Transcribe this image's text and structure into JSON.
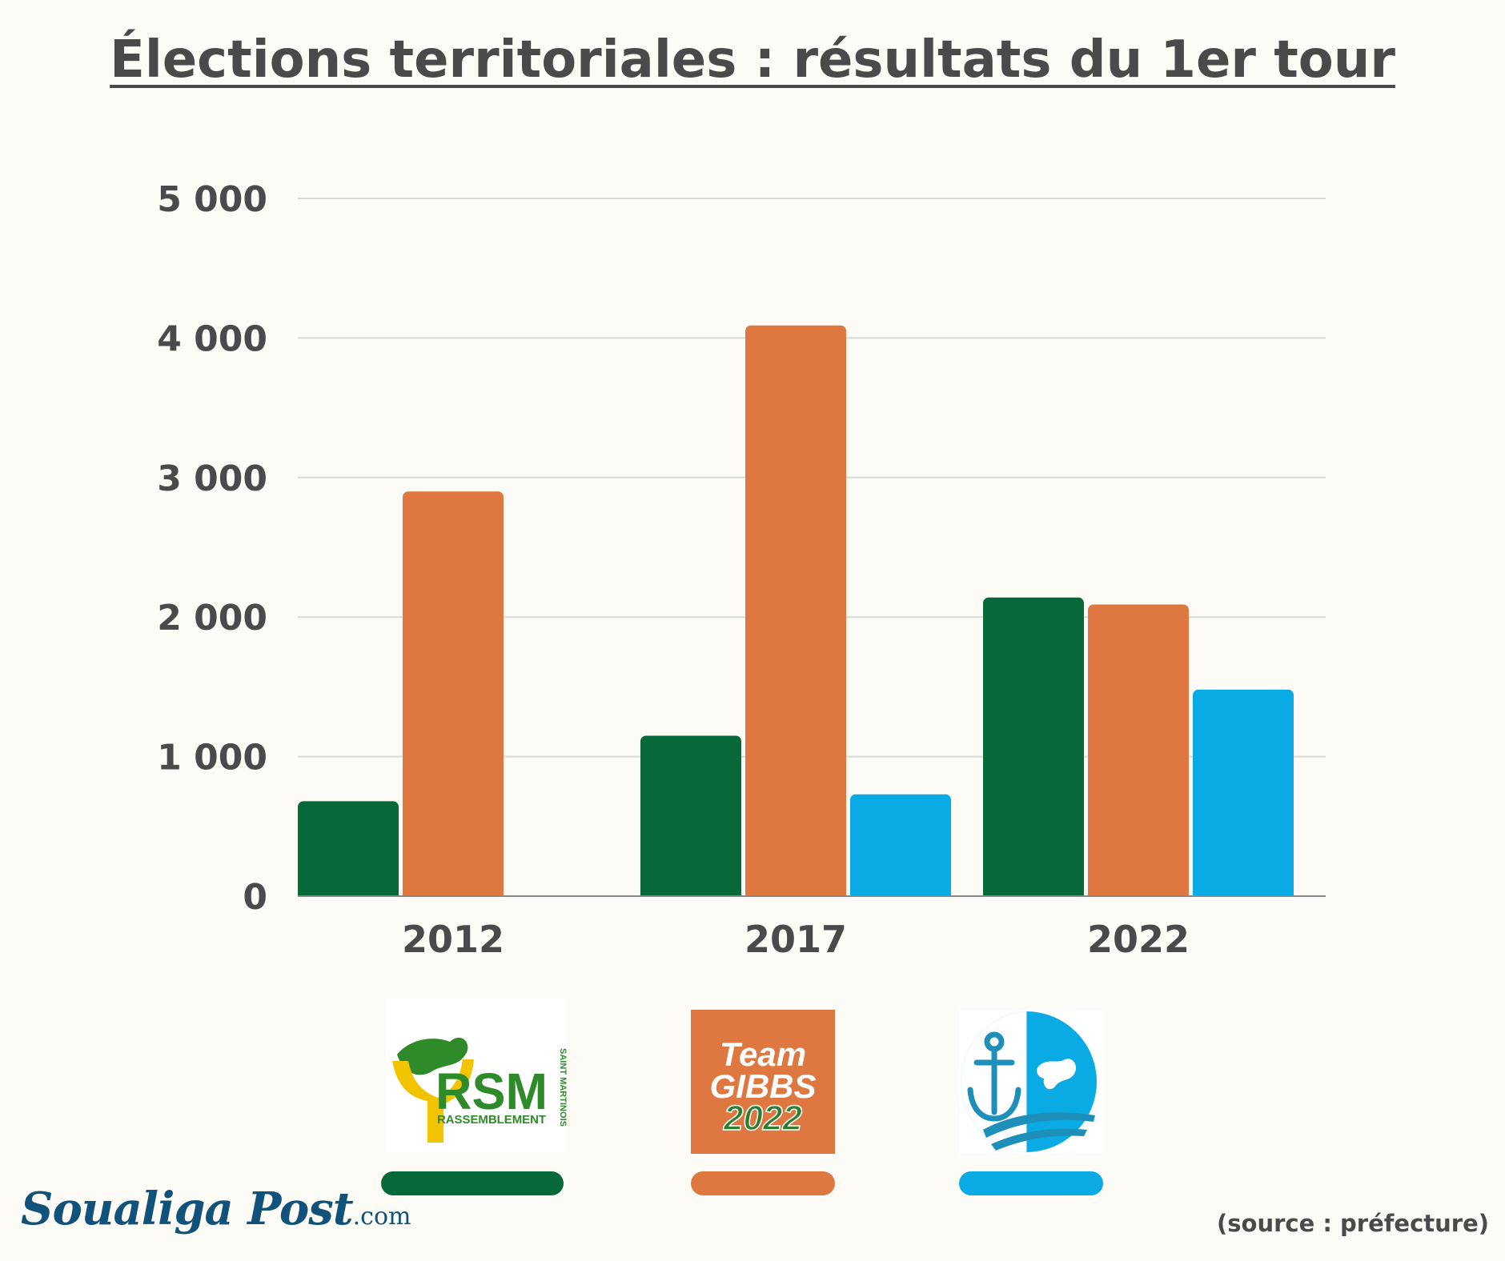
{
  "chart_data": {
    "type": "bar",
    "title": "Élections territoriales : résultats du 1er tour",
    "categories": [
      "2012",
      "2017",
      "2022"
    ],
    "series": [
      {
        "values": [
          680,
          1150,
          2140
        ],
        "color": "#07683a"
      },
      {
        "values": [
          2900,
          4090,
          2090
        ],
        "color": "#df7741"
      },
      {
        "values": [
          0,
          730,
          1480
        ],
        "color": "#0aabe4"
      }
    ],
    "yticks": [
      0,
      1000,
      2000,
      3000,
      4000,
      5000
    ],
    "ytick_labels": [
      "0",
      "1 000",
      "2 000",
      "3 000",
      "4 000",
      "5 000"
    ],
    "ylim": [
      0,
      5000
    ],
    "grid": true,
    "xlabel": "",
    "ylabel": ""
  },
  "legend": {
    "rsm": {
      "logo_main": "RSM",
      "logo_sub": "RASSEMBLEMENT",
      "logo_side": "SAINT MARTINOIS",
      "color": "#07683a"
    },
    "gibbs": {
      "line1": "Team",
      "line2": "GIBBS",
      "line3": "2022",
      "color": "#df7741"
    },
    "third": {
      "icon": "anchor-island-icon",
      "color": "#0aabe4"
    }
  },
  "footer": {
    "source": "(source : préfecture)",
    "brand_main": "Soualiga Post",
    "brand_suffix": ".com"
  }
}
